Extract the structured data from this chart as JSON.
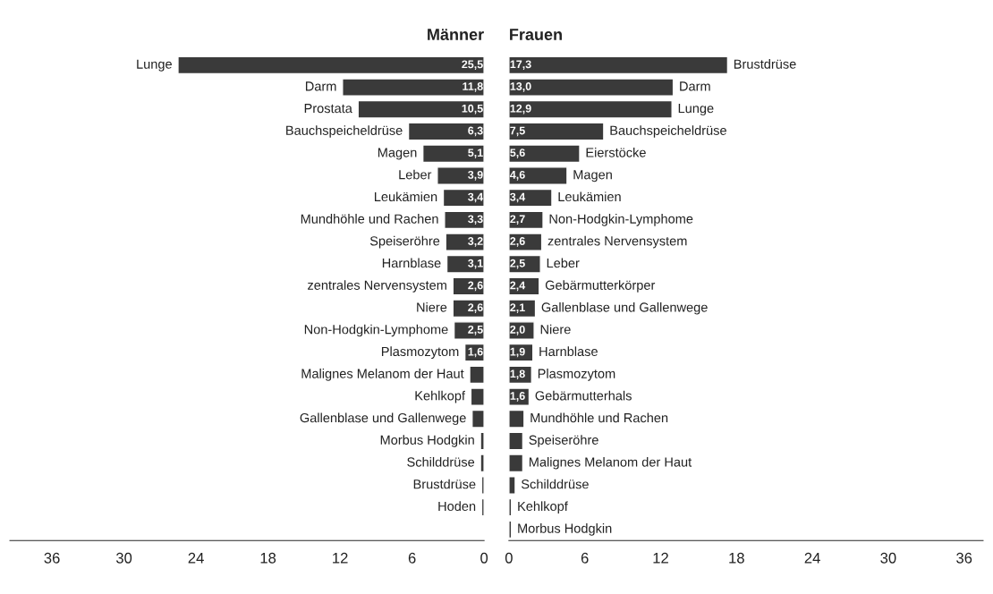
{
  "chart_data": [
    {
      "type": "bar",
      "orientation": "horizontal",
      "title": "Männer",
      "categories": [
        "Lunge",
        "Darm",
        "Prostata",
        "Bauchspeicheldrüse",
        "Magen",
        "Leber",
        "Leukämien",
        "Mundhöhle und Rachen",
        "Speiseröhre",
        "Harnblase",
        "zentrales Nervensystem",
        "Niere",
        "Non-Hodgkin-Lymphome",
        "Plasmozytom",
        "Malignes Melanom der Haut",
        "Kehlkopf",
        "Gallenblase und Gallenwege",
        "Morbus Hodgkin",
        "Schilddrüse",
        "Brustdrüse",
        "Hoden"
      ],
      "values": [
        25.5,
        11.8,
        10.5,
        6.3,
        5.1,
        3.9,
        3.4,
        3.3,
        3.2,
        3.1,
        2.6,
        2.6,
        2.5,
        1.6,
        1.2,
        1.1,
        1.0,
        0.3,
        0.3,
        0.2,
        0.2
      ],
      "value_labels": [
        "25,5",
        "11,8",
        "10,5",
        "6,3",
        "5,1",
        "3,9",
        "3,4",
        "3,3",
        "3,2",
        "3,1",
        "2,6",
        "2,6",
        "2,5",
        "1,6",
        null,
        null,
        null,
        null,
        null,
        null,
        null
      ],
      "color": "#3a3a3a",
      "xlim": [
        39.5,
        0
      ],
      "xticks": [
        36,
        30,
        24,
        18,
        12,
        6,
        0
      ],
      "grid": false
    },
    {
      "type": "bar",
      "orientation": "horizontal",
      "title": "Frauen",
      "categories": [
        "Brustdrüse",
        "Darm",
        "Lunge",
        "Bauchspeicheldrüse",
        "Eierstöcke",
        "Magen",
        "Leukämien",
        "Non-Hodgkin-Lymphome",
        "zentrales Nervensystem",
        "Leber",
        "Gebärmutterkörper",
        "Gallenblase und Gallenwege",
        "Niere",
        "Harnblase",
        "Plasmozytom",
        "Gebärmutterhals",
        "Mundhöhle und Rachen",
        "Speiseröhre",
        "Malignes Melanom der Haut",
        "Schilddrüse",
        "Kehlkopf",
        "Morbus Hodgkin"
      ],
      "values": [
        17.3,
        13.0,
        12.9,
        7.5,
        5.6,
        4.6,
        3.4,
        2.7,
        2.6,
        2.5,
        2.4,
        2.1,
        2.0,
        1.9,
        1.8,
        1.6,
        1.2,
        1.1,
        1.1,
        0.5,
        0.2,
        0.2
      ],
      "value_labels": [
        "17,3",
        "13,0",
        "12,9",
        "7,5",
        "5,6",
        "4,6",
        "3,4",
        "2,7",
        "2,6",
        "2,5",
        "2,4",
        "2,1",
        "2,0",
        "1,9",
        "1,8",
        "1,6",
        null,
        null,
        null,
        null,
        null,
        null
      ],
      "color": "#3a3a3a",
      "xlim": [
        0,
        37.5
      ],
      "xticks": [
        0,
        6,
        12,
        18,
        24,
        30,
        36
      ],
      "grid": false
    }
  ]
}
